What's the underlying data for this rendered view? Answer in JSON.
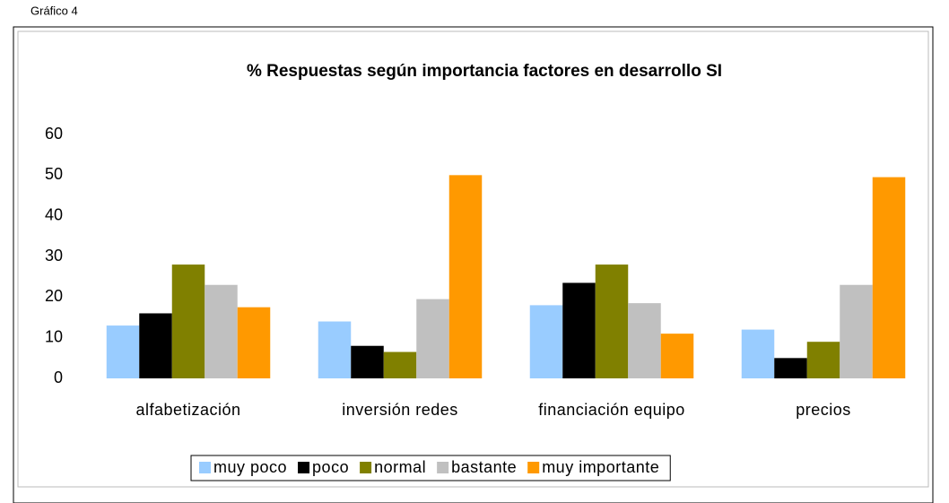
{
  "caption": "Gráfico 4",
  "chart_data": {
    "type": "bar",
    "title": "% Respuestas según importancia factores en desarrollo SI",
    "categories": [
      "alfabetización",
      "inversión redes",
      "financiación equipo",
      "precios"
    ],
    "series": [
      {
        "name": "muy poco",
        "color": "#99ccff",
        "values": [
          13,
          14,
          18,
          12
        ]
      },
      {
        "name": "poco",
        "color": "#000000",
        "values": [
          16,
          8,
          23.5,
          5
        ]
      },
      {
        "name": "normal",
        "color": "#808000",
        "values": [
          28,
          6.5,
          28,
          9
        ]
      },
      {
        "name": "bastante",
        "color": "#c0c0c0",
        "values": [
          23,
          19.5,
          18.5,
          23
        ]
      },
      {
        "name": "muy importante",
        "color": "#ff9900",
        "values": [
          17.5,
          50,
          11,
          49.5
        ]
      }
    ],
    "ylim": [
      0,
      60
    ],
    "yticks": [
      0,
      10,
      20,
      30,
      40,
      50,
      60
    ],
    "grid": false,
    "legend": "bottom"
  }
}
